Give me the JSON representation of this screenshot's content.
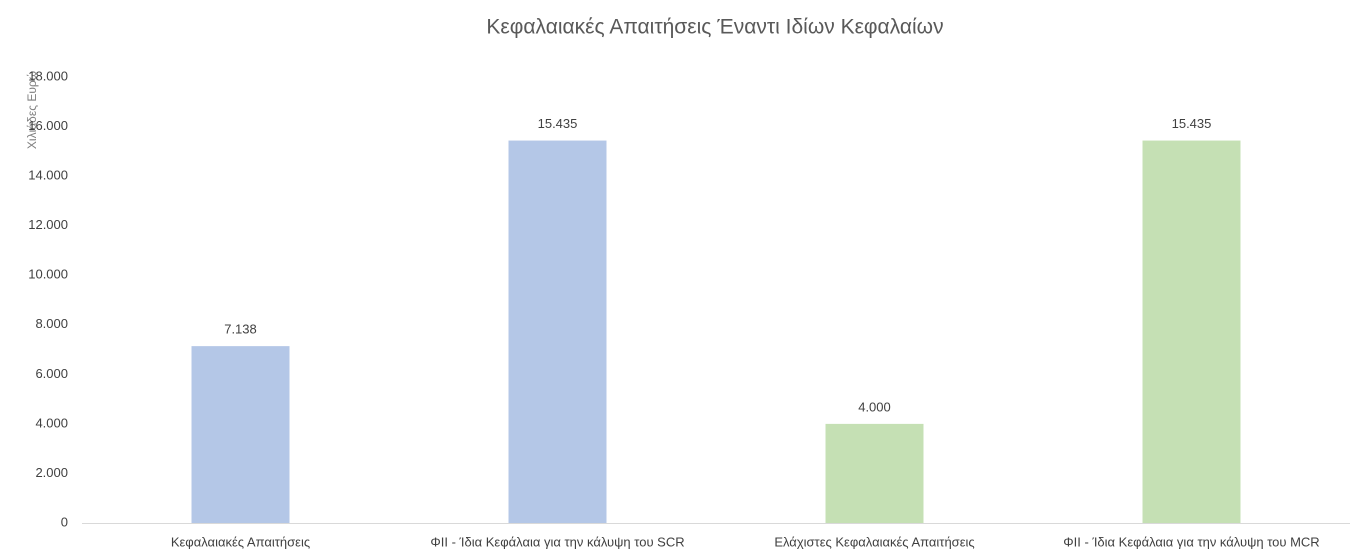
{
  "chart_data": {
    "type": "bar",
    "title": "Κεφαλαιακές Απαιτήσεις Έναντι Ιδίων Κεφαλαίων",
    "y_label": "Χιλιάδες Ευρώ",
    "categories": [
      "Κεφαλαιακές Απαιτήσεις",
      "ΦΙΙ - Ίδια Κεφάλαια για την κάλυψη του SCR",
      "Ελάχιστες Κεφαλαιακές Απαιτήσεις",
      "ΦΙΙ - Ίδια Κεφάλαια για την κάλυψη του MCR"
    ],
    "values": [
      7138,
      15435,
      4000,
      15435
    ],
    "value_labels": [
      "7.138",
      "15.435",
      "4.000",
      "15.435"
    ],
    "colors": [
      "#b4c7e7",
      "#b4c7e7",
      "#c5e0b4",
      "#c5e0b4"
    ],
    "ylim": [
      0,
      18000
    ],
    "yticks": [
      0,
      {
        "value": 2000,
        "label": "2.000"
      },
      {
        "value": 4000,
        "label": "4.000"
      },
      {
        "value": 6000,
        "label": "6.000"
      },
      {
        "value": 8000,
        "label": "8.000"
      },
      {
        "value": 10000,
        "label": "10.000"
      },
      {
        "value": 12000,
        "label": "12.000"
      },
      {
        "value": 14000,
        "label": "14.000"
      },
      {
        "value": 16000,
        "label": "16.000"
      },
      {
        "value": 18000,
        "label": "18.000"
      }
    ],
    "grid": false
  }
}
